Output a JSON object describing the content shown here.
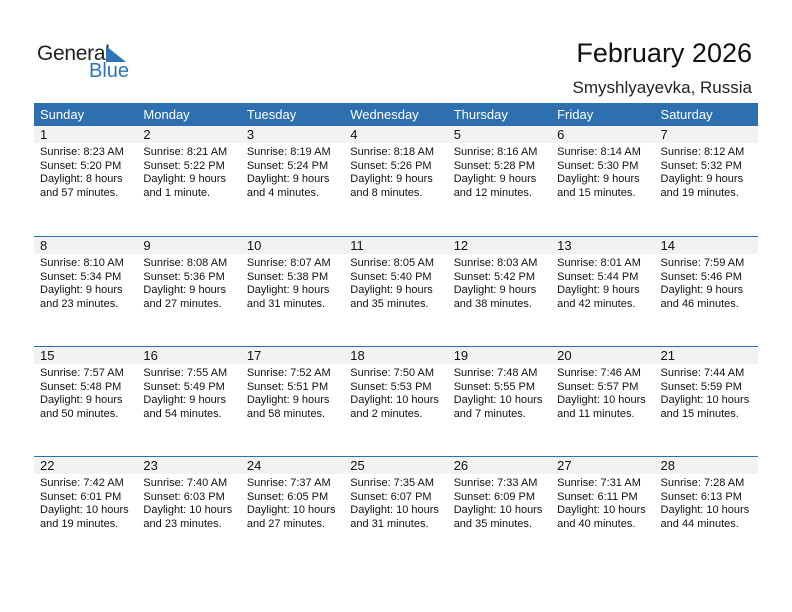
{
  "logo": {
    "line1": "General",
    "line2": "Blue",
    "accent": "#2e75b6"
  },
  "header": {
    "title": "February 2026",
    "location": "Smyshlyayevka, Russia"
  },
  "weekdays": [
    "Sunday",
    "Monday",
    "Tuesday",
    "Wednesday",
    "Thursday",
    "Friday",
    "Saturday"
  ],
  "colors": {
    "header_bg": "#2e6fb0",
    "day_band": "#f2f2f2"
  },
  "weeks": [
    [
      {
        "day": "1",
        "sunrise": "Sunrise: 8:23 AM",
        "sunset": "Sunset: 5:20 PM",
        "daylight1": "Daylight: 8 hours",
        "daylight2": "and 57 minutes."
      },
      {
        "day": "2",
        "sunrise": "Sunrise: 8:21 AM",
        "sunset": "Sunset: 5:22 PM",
        "daylight1": "Daylight: 9 hours",
        "daylight2": "and 1 minute."
      },
      {
        "day": "3",
        "sunrise": "Sunrise: 8:19 AM",
        "sunset": "Sunset: 5:24 PM",
        "daylight1": "Daylight: 9 hours",
        "daylight2": "and 4 minutes."
      },
      {
        "day": "4",
        "sunrise": "Sunrise: 8:18 AM",
        "sunset": "Sunset: 5:26 PM",
        "daylight1": "Daylight: 9 hours",
        "daylight2": "and 8 minutes."
      },
      {
        "day": "5",
        "sunrise": "Sunrise: 8:16 AM",
        "sunset": "Sunset: 5:28 PM",
        "daylight1": "Daylight: 9 hours",
        "daylight2": "and 12 minutes."
      },
      {
        "day": "6",
        "sunrise": "Sunrise: 8:14 AM",
        "sunset": "Sunset: 5:30 PM",
        "daylight1": "Daylight: 9 hours",
        "daylight2": "and 15 minutes."
      },
      {
        "day": "7",
        "sunrise": "Sunrise: 8:12 AM",
        "sunset": "Sunset: 5:32 PM",
        "daylight1": "Daylight: 9 hours",
        "daylight2": "and 19 minutes."
      }
    ],
    [
      {
        "day": "8",
        "sunrise": "Sunrise: 8:10 AM",
        "sunset": "Sunset: 5:34 PM",
        "daylight1": "Daylight: 9 hours",
        "daylight2": "and 23 minutes."
      },
      {
        "day": "9",
        "sunrise": "Sunrise: 8:08 AM",
        "sunset": "Sunset: 5:36 PM",
        "daylight1": "Daylight: 9 hours",
        "daylight2": "and 27 minutes."
      },
      {
        "day": "10",
        "sunrise": "Sunrise: 8:07 AM",
        "sunset": "Sunset: 5:38 PM",
        "daylight1": "Daylight: 9 hours",
        "daylight2": "and 31 minutes."
      },
      {
        "day": "11",
        "sunrise": "Sunrise: 8:05 AM",
        "sunset": "Sunset: 5:40 PM",
        "daylight1": "Daylight: 9 hours",
        "daylight2": "and 35 minutes."
      },
      {
        "day": "12",
        "sunrise": "Sunrise: 8:03 AM",
        "sunset": "Sunset: 5:42 PM",
        "daylight1": "Daylight: 9 hours",
        "daylight2": "and 38 minutes."
      },
      {
        "day": "13",
        "sunrise": "Sunrise: 8:01 AM",
        "sunset": "Sunset: 5:44 PM",
        "daylight1": "Daylight: 9 hours",
        "daylight2": "and 42 minutes."
      },
      {
        "day": "14",
        "sunrise": "Sunrise: 7:59 AM",
        "sunset": "Sunset: 5:46 PM",
        "daylight1": "Daylight: 9 hours",
        "daylight2": "and 46 minutes."
      }
    ],
    [
      {
        "day": "15",
        "sunrise": "Sunrise: 7:57 AM",
        "sunset": "Sunset: 5:48 PM",
        "daylight1": "Daylight: 9 hours",
        "daylight2": "and 50 minutes."
      },
      {
        "day": "16",
        "sunrise": "Sunrise: 7:55 AM",
        "sunset": "Sunset: 5:49 PM",
        "daylight1": "Daylight: 9 hours",
        "daylight2": "and 54 minutes."
      },
      {
        "day": "17",
        "sunrise": "Sunrise: 7:52 AM",
        "sunset": "Sunset: 5:51 PM",
        "daylight1": "Daylight: 9 hours",
        "daylight2": "and 58 minutes."
      },
      {
        "day": "18",
        "sunrise": "Sunrise: 7:50 AM",
        "sunset": "Sunset: 5:53 PM",
        "daylight1": "Daylight: 10 hours",
        "daylight2": "and 2 minutes."
      },
      {
        "day": "19",
        "sunrise": "Sunrise: 7:48 AM",
        "sunset": "Sunset: 5:55 PM",
        "daylight1": "Daylight: 10 hours",
        "daylight2": "and 7 minutes."
      },
      {
        "day": "20",
        "sunrise": "Sunrise: 7:46 AM",
        "sunset": "Sunset: 5:57 PM",
        "daylight1": "Daylight: 10 hours",
        "daylight2": "and 11 minutes."
      },
      {
        "day": "21",
        "sunrise": "Sunrise: 7:44 AM",
        "sunset": "Sunset: 5:59 PM",
        "daylight1": "Daylight: 10 hours",
        "daylight2": "and 15 minutes."
      }
    ],
    [
      {
        "day": "22",
        "sunrise": "Sunrise: 7:42 AM",
        "sunset": "Sunset: 6:01 PM",
        "daylight1": "Daylight: 10 hours",
        "daylight2": "and 19 minutes."
      },
      {
        "day": "23",
        "sunrise": "Sunrise: 7:40 AM",
        "sunset": "Sunset: 6:03 PM",
        "daylight1": "Daylight: 10 hours",
        "daylight2": "and 23 minutes."
      },
      {
        "day": "24",
        "sunrise": "Sunrise: 7:37 AM",
        "sunset": "Sunset: 6:05 PM",
        "daylight1": "Daylight: 10 hours",
        "daylight2": "and 27 minutes."
      },
      {
        "day": "25",
        "sunrise": "Sunrise: 7:35 AM",
        "sunset": "Sunset: 6:07 PM",
        "daylight1": "Daylight: 10 hours",
        "daylight2": "and 31 minutes."
      },
      {
        "day": "26",
        "sunrise": "Sunrise: 7:33 AM",
        "sunset": "Sunset: 6:09 PM",
        "daylight1": "Daylight: 10 hours",
        "daylight2": "and 35 minutes."
      },
      {
        "day": "27",
        "sunrise": "Sunrise: 7:31 AM",
        "sunset": "Sunset: 6:11 PM",
        "daylight1": "Daylight: 10 hours",
        "daylight2": "and 40 minutes."
      },
      {
        "day": "28",
        "sunrise": "Sunrise: 7:28 AM",
        "sunset": "Sunset: 6:13 PM",
        "daylight1": "Daylight: 10 hours",
        "daylight2": "and 44 minutes."
      }
    ]
  ]
}
